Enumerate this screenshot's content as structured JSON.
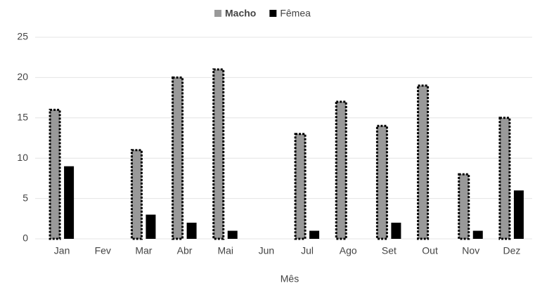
{
  "chart_data": {
    "type": "bar",
    "categories": [
      "Jan",
      "Fev",
      "Mar",
      "Abr",
      "Mai",
      "Jun",
      "Jul",
      "Ago",
      "Set",
      "Out",
      "Nov",
      "Dez"
    ],
    "series": [
      {
        "name": "Macho",
        "color": "#999999",
        "values": [
          16,
          0,
          11,
          20,
          21,
          0,
          13,
          17,
          14,
          19,
          8,
          15
        ]
      },
      {
        "name": "Fêmea",
        "color": "#000000",
        "values": [
          9,
          0,
          3,
          2,
          1,
          0,
          1,
          0,
          2,
          0,
          1,
          6
        ]
      }
    ],
    "x_label": "Mês",
    "ylim": [
      0,
      25
    ],
    "yticks": [
      0,
      5,
      10,
      15,
      20,
      25
    ],
    "grid": true,
    "legend": "top"
  }
}
